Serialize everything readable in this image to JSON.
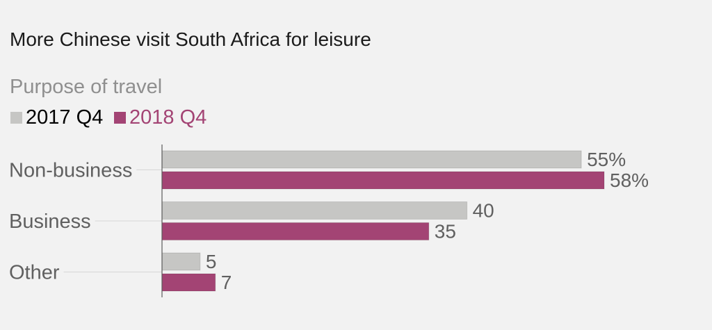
{
  "chart_data": {
    "type": "bar",
    "orientation": "horizontal",
    "title": "More Chinese visit South Africa for leisure",
    "subtitle": "Purpose of travel",
    "categories": [
      "Non-business",
      "Business",
      "Other"
    ],
    "series": [
      {
        "name": "2017 Q4",
        "color": "#c6c6c4",
        "values": [
          55,
          40,
          5
        ],
        "labels": [
          "55%",
          "40",
          "5"
        ]
      },
      {
        "name": "2018 Q4",
        "color": "#a34474",
        "values": [
          58,
          35,
          7
        ],
        "labels": [
          "58%",
          "35",
          "7"
        ]
      }
    ],
    "xlim": [
      0,
      58
    ],
    "legend": "top-left",
    "grid": false
  }
}
